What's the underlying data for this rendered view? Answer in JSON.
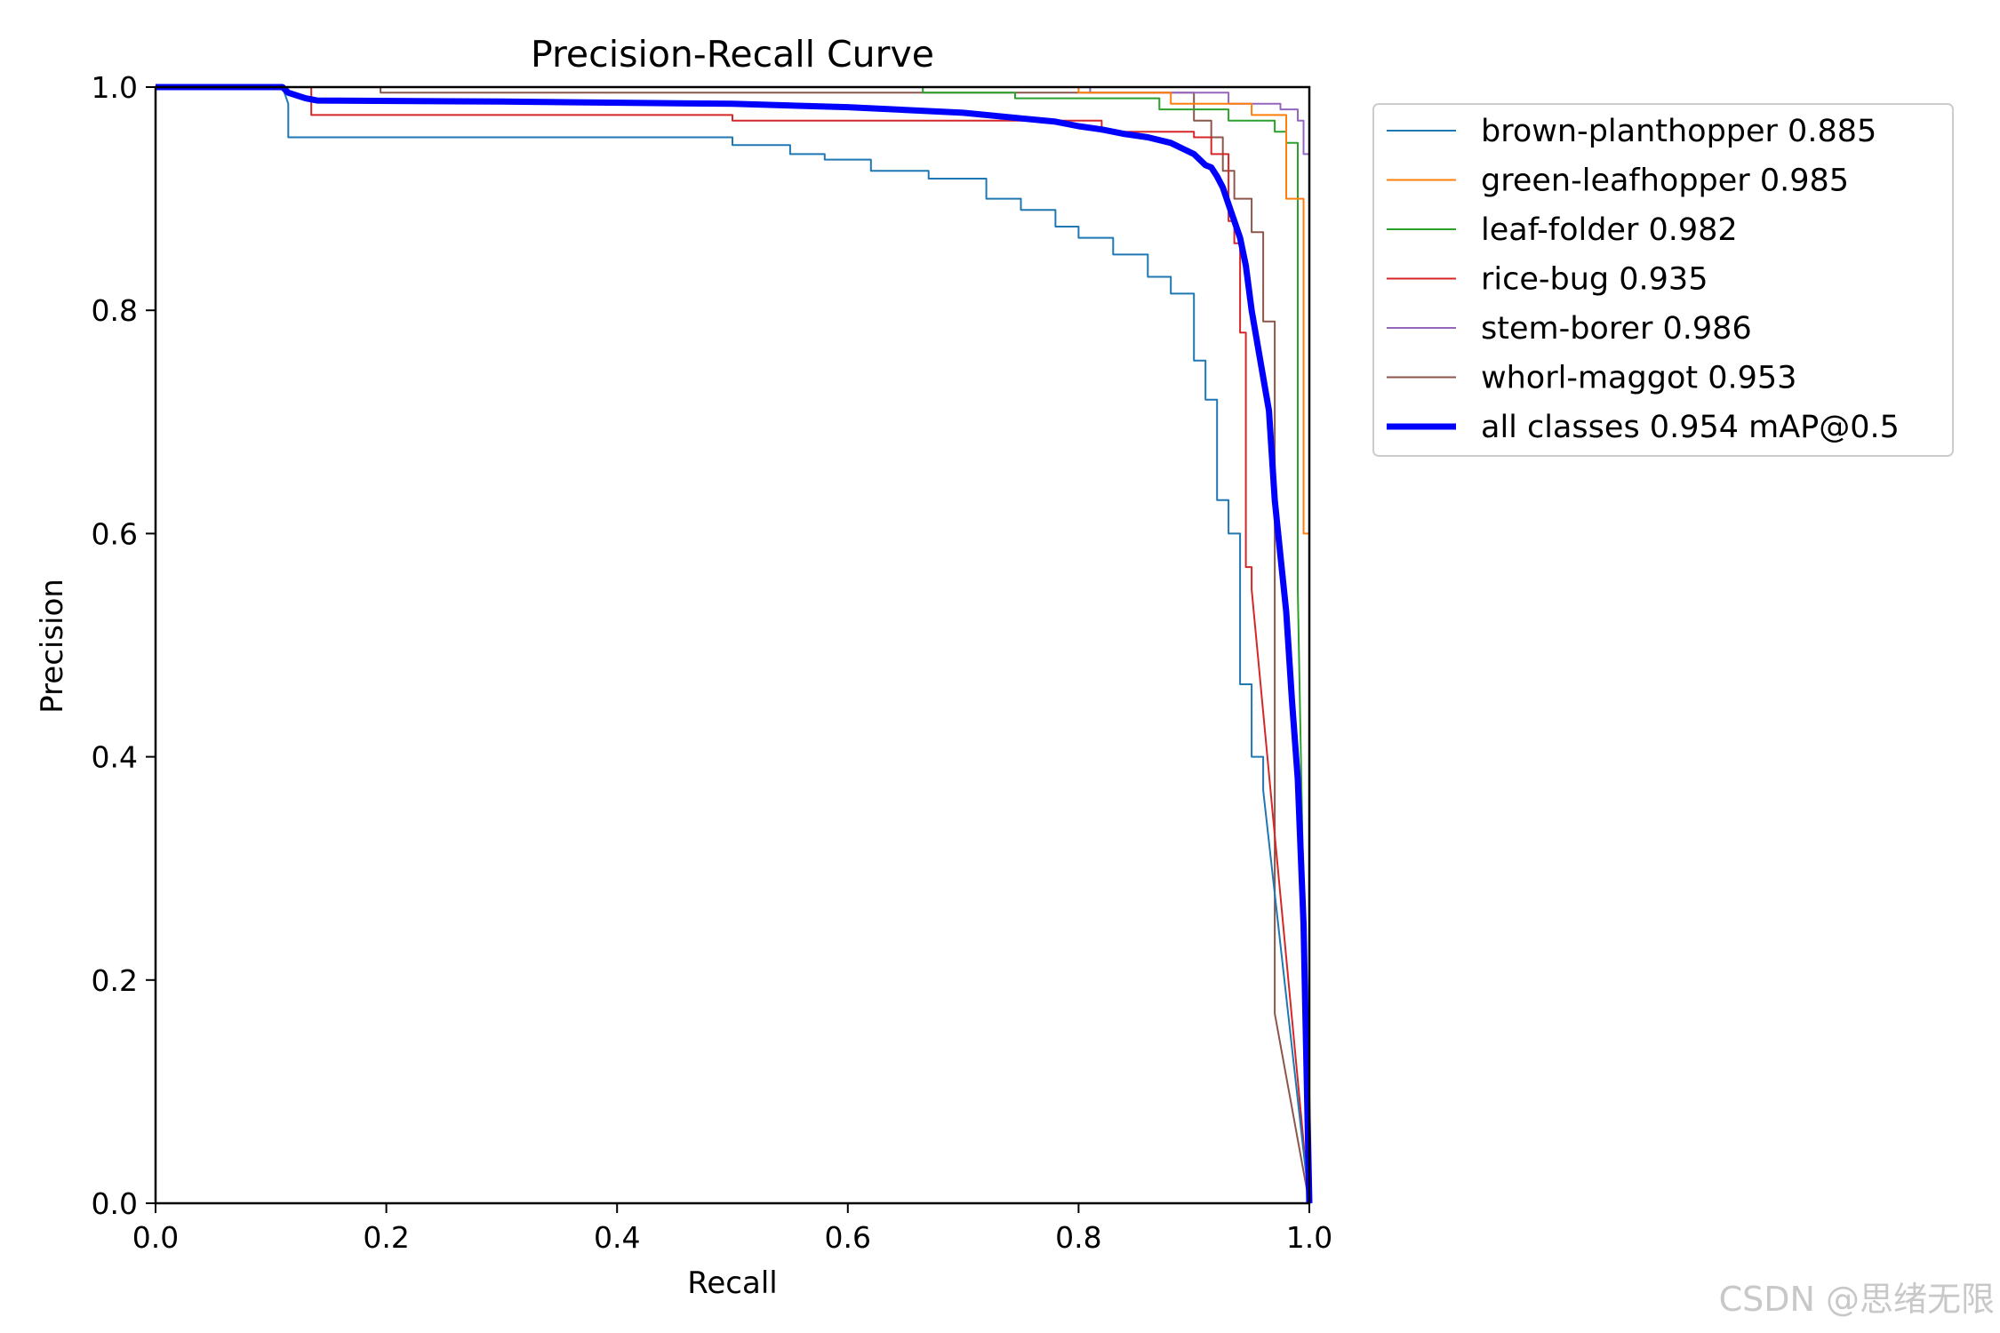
{
  "chart_data": {
    "type": "line",
    "title": "Precision-Recall Curve",
    "xlabel": "Recall",
    "ylabel": "Precision",
    "xlim": [
      0,
      1
    ],
    "ylim": [
      0,
      1
    ],
    "xticks": [
      "0.0",
      "0.2",
      "0.4",
      "0.6",
      "0.8",
      "1.0"
    ],
    "yticks": [
      "0.0",
      "0.2",
      "0.4",
      "0.6",
      "0.8",
      "1.0"
    ],
    "grid": false,
    "legend_position": "outside-top-right",
    "series": [
      {
        "name": "brown-planthopper 0.885",
        "color": "#1f77b4",
        "width": 2,
        "x": [
          0,
          0.11,
          0.115,
          0.115,
          0.5,
          0.5,
          0.55,
          0.55,
          0.58,
          0.58,
          0.62,
          0.62,
          0.67,
          0.67,
          0.72,
          0.72,
          0.75,
          0.75,
          0.78,
          0.78,
          0.8,
          0.8,
          0.83,
          0.83,
          0.86,
          0.86,
          0.88,
          0.88,
          0.9,
          0.9,
          0.91,
          0.91,
          0.92,
          0.92,
          0.93,
          0.93,
          0.94,
          0.94,
          0.95,
          0.95,
          0.96,
          0.96,
          1.0
        ],
        "y": [
          1.0,
          1.0,
          0.985,
          0.955,
          0.955,
          0.948,
          0.948,
          0.94,
          0.94,
          0.935,
          0.935,
          0.925,
          0.925,
          0.918,
          0.918,
          0.9,
          0.9,
          0.89,
          0.89,
          0.875,
          0.875,
          0.865,
          0.865,
          0.85,
          0.85,
          0.83,
          0.83,
          0.815,
          0.815,
          0.755,
          0.755,
          0.72,
          0.72,
          0.63,
          0.63,
          0.6,
          0.6,
          0.465,
          0.465,
          0.4,
          0.4,
          0.37,
          0.0
        ]
      },
      {
        "name": "green-leafhopper 0.985",
        "color": "#ff7f0e",
        "width": 2,
        "x": [
          0,
          0.8,
          0.8,
          0.88,
          0.88,
          0.95,
          0.95,
          0.98,
          0.98,
          0.995,
          0.995,
          1.0,
          1.0
        ],
        "y": [
          1.0,
          1.0,
          0.995,
          0.995,
          0.985,
          0.985,
          0.975,
          0.975,
          0.9,
          0.9,
          0.6,
          0.6,
          0.0
        ]
      },
      {
        "name": "leaf-folder 0.982",
        "color": "#2ca02c",
        "width": 2,
        "x": [
          0,
          0.665,
          0.665,
          0.745,
          0.745,
          0.87,
          0.87,
          0.93,
          0.93,
          0.97,
          0.97,
          0.98,
          0.98,
          0.99,
          0.99,
          1.0
        ],
        "y": [
          1.0,
          1.0,
          0.995,
          0.995,
          0.99,
          0.99,
          0.98,
          0.98,
          0.97,
          0.97,
          0.96,
          0.96,
          0.95,
          0.95,
          0.55,
          0.0
        ]
      },
      {
        "name": "rice-bug 0.935",
        "color": "#d62728",
        "width": 2,
        "x": [
          0,
          0.135,
          0.135,
          0.5,
          0.5,
          0.82,
          0.82,
          0.9,
          0.9,
          0.915,
          0.915,
          0.93,
          0.93,
          0.935,
          0.935,
          0.94,
          0.94,
          0.945,
          0.945,
          0.95,
          0.95,
          1.0
        ],
        "y": [
          1.0,
          1.0,
          0.975,
          0.975,
          0.97,
          0.97,
          0.96,
          0.96,
          0.955,
          0.955,
          0.94,
          0.94,
          0.88,
          0.88,
          0.86,
          0.86,
          0.78,
          0.78,
          0.57,
          0.57,
          0.55,
          0.0
        ]
      },
      {
        "name": "stem-borer 0.986",
        "color": "#9467bd",
        "width": 2,
        "x": [
          0,
          0.81,
          0.81,
          0.93,
          0.93,
          0.975,
          0.975,
          0.99,
          0.99,
          0.995,
          0.995,
          1.0,
          1.0
        ],
        "y": [
          1.0,
          1.0,
          0.995,
          0.995,
          0.985,
          0.985,
          0.98,
          0.98,
          0.97,
          0.97,
          0.94,
          0.94,
          0.0
        ]
      },
      {
        "name": "whorl-maggot 0.953",
        "color": "#8c564b",
        "width": 2,
        "x": [
          0,
          0.195,
          0.195,
          0.9,
          0.9,
          0.915,
          0.915,
          0.925,
          0.925,
          0.935,
          0.935,
          0.95,
          0.95,
          0.96,
          0.96,
          0.97,
          0.97,
          1.0
        ],
        "y": [
          1.0,
          1.0,
          0.995,
          0.995,
          0.97,
          0.97,
          0.955,
          0.955,
          0.925,
          0.925,
          0.9,
          0.9,
          0.87,
          0.87,
          0.79,
          0.79,
          0.17,
          0.0
        ]
      },
      {
        "name": "all classes 0.954 mAP@0.5",
        "color": "#0000ff",
        "width": 7,
        "x": [
          0,
          0.11,
          0.115,
          0.13,
          0.14,
          0.3,
          0.5,
          0.6,
          0.7,
          0.75,
          0.78,
          0.8,
          0.82,
          0.84,
          0.86,
          0.88,
          0.89,
          0.9,
          0.905,
          0.91,
          0.915,
          0.92,
          0.925,
          0.93,
          0.935,
          0.94,
          0.945,
          0.95,
          0.955,
          0.96,
          0.965,
          0.97,
          0.975,
          0.98,
          0.985,
          0.99,
          0.995,
          1.0
        ],
        "y": [
          1.0,
          1.0,
          0.995,
          0.99,
          0.988,
          0.987,
          0.985,
          0.982,
          0.977,
          0.972,
          0.969,
          0.965,
          0.962,
          0.958,
          0.955,
          0.95,
          0.945,
          0.94,
          0.935,
          0.93,
          0.928,
          0.92,
          0.91,
          0.895,
          0.88,
          0.865,
          0.84,
          0.8,
          0.77,
          0.74,
          0.71,
          0.63,
          0.58,
          0.53,
          0.45,
          0.38,
          0.25,
          0.0
        ]
      }
    ]
  },
  "watermark": "CSDN @思绪无限"
}
